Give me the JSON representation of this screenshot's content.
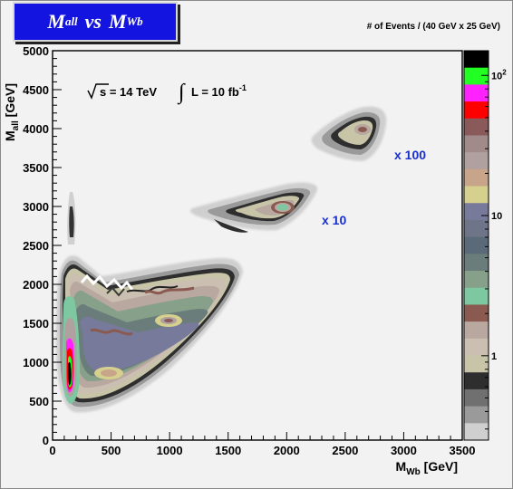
{
  "title": {
    "main_a": "M",
    "sub_a": "all",
    "vs": "vs",
    "main_b": "M",
    "sub_b": "Wb"
  },
  "z_axis_label": "# of Events / (40 GeV x 25 GeV)",
  "annotations": {
    "sqrt_s": "s = 14 TeV",
    "lumi": "L = 10 fb",
    "lumi_exp": "-1",
    "x10": "x 10",
    "x100": "x 100"
  },
  "colors": {
    "annotation_scale": "#1a2fd0",
    "title_bg": "#1414e0"
  },
  "chart_data": {
    "type": "heatmap",
    "title": "M all vs M Wb",
    "xlabel": "M Wb [GeV]",
    "ylabel": "M all [GeV]",
    "xlim": [
      0,
      3500
    ],
    "ylim": [
      0,
      5000
    ],
    "x_ticks": [
      "0",
      "500",
      "1000",
      "1500",
      "2000",
      "2500",
      "3000",
      "3500"
    ],
    "y_ticks": [
      "0",
      "500",
      "1000",
      "1500",
      "2000",
      "2500",
      "3000",
      "3500",
      "4000",
      "4500",
      "5000"
    ],
    "z_scale": "log",
    "z_ticks": [
      "1",
      "10",
      "10^2"
    ],
    "colorbar_colors": [
      "#000000",
      "#22ff22",
      "#ff22ff",
      "#ff0000",
      "#8a5a5a",
      "#a08a8a",
      "#b0a0a0",
      "#c8a58a",
      "#d6d08e",
      "#777a9a",
      "#6f7588",
      "#5a6a78",
      "#6b7d7a",
      "#86a08a",
      "#7dc8a0",
      "#8a5a50",
      "#b8a8a0",
      "#cbbfb2",
      "#c8c4a8",
      "#2e2e2e",
      "#707070",
      "#9a9a9a",
      "#cfcfcf"
    ],
    "regions": [
      {
        "name": "main band",
        "x_range": [
          100,
          1650
        ],
        "y_range": [
          450,
          2300
        ],
        "peak": [
          170,
          850
        ],
        "peak_level": "above 10^2"
      },
      {
        "name": "x 10 cluster",
        "x_range": [
          1250,
          2350
        ],
        "y_range": [
          2600,
          3300
        ],
        "peak": [
          2000,
          2950
        ],
        "scale_factor": 10
      },
      {
        "name": "x 100 cluster",
        "x_range": [
          2300,
          3000
        ],
        "y_range": [
          3600,
          4300
        ],
        "peak": [
          2650,
          3950
        ],
        "scale_factor": 100
      }
    ]
  }
}
